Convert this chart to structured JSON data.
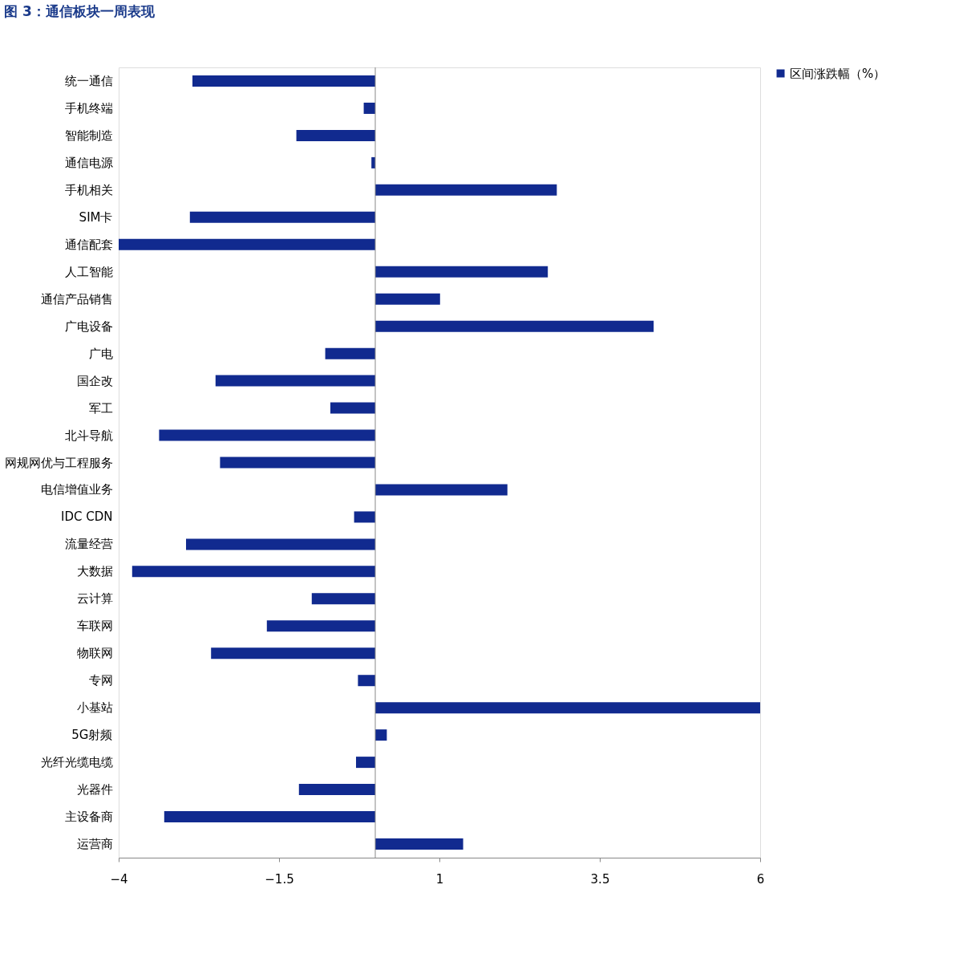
{
  "chart_data": {
    "type": "bar",
    "orientation": "horizontal",
    "title": "图 3：通信板块一周表现",
    "categories": [
      "统一通信",
      "手机终端",
      "智能制造",
      "通信电源",
      "手机相关",
      "SIM卡",
      "通信配套",
      "人工智能",
      "通信产品销售",
      "广电设备",
      "广电",
      "国企改",
      "军工",
      "北斗导航",
      "网规网优与工程服务",
      "电信增值业务",
      "IDC CDN",
      "流量经营",
      "大数据",
      "云计算",
      "车联网",
      "物联网",
      "专网",
      "小基站",
      "5G射频",
      "光纤光缆电缆",
      "光器件",
      "主设备商",
      "运营商"
    ],
    "series": [
      {
        "name": "区间涨跌幅（%）",
        "color": "#112a8f",
        "values": [
          -2.85,
          -0.18,
          -1.23,
          -0.06,
          2.83,
          -2.89,
          -4.0,
          2.69,
          1.01,
          4.34,
          -0.78,
          -2.49,
          -0.7,
          -3.37,
          -2.42,
          2.06,
          -0.33,
          -2.95,
          -3.79,
          -0.99,
          -1.69,
          -2.56,
          -0.27,
          6.0,
          0.18,
          -0.3,
          -1.19,
          -3.29,
          1.37
        ]
      }
    ],
    "xlim": [
      -4,
      6
    ],
    "xticks": [
      -4,
      -1.5,
      1,
      3.5,
      6
    ],
    "grid": false,
    "legend": "right"
  }
}
